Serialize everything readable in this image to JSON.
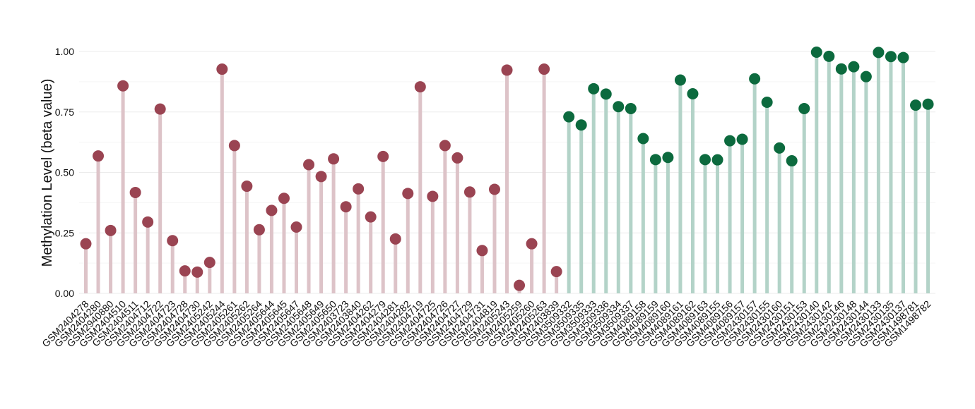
{
  "chart_data": {
    "type": "lollipop",
    "title": "",
    "xlabel": "",
    "ylabel": "Methylation Level (beta value)",
    "ylim": [
      0,
      1.0
    ],
    "yticks": [
      "0.00",
      "0.25",
      "0.50",
      "0.75",
      "1.00"
    ],
    "ytick_values": [
      0,
      0.25,
      0.5,
      0.75,
      1.0
    ],
    "grid": true,
    "categories": [
      "GSM2404278",
      "GSM2404280",
      "GSM2940880",
      "GSM2404510",
      "GSM2404511",
      "GSM2404712",
      "GSM2404722",
      "GSM2404723",
      "GSM2404728",
      "GSM2404730",
      "GSM2405242",
      "GSM2405244",
      "GSM2405261",
      "GSM2405262",
      "GSM2405264",
      "GSM2405644",
      "GSM2405645",
      "GSM2405647",
      "GSM2405648",
      "GSM2405649",
      "GSM2405650",
      "GSM2403723",
      "GSM2403840",
      "GSM2404262",
      "GSM2404279",
      "GSM2404281",
      "GSM2404282",
      "GSM2404719",
      "GSM2404725",
      "GSM2404726",
      "GSM2404727",
      "GSM2404729",
      "GSM2404731",
      "GSM2404819",
      "GSM2405243",
      "GSM2405259",
      "GSM2405260",
      "GSM2405263",
      "GSM2403839",
      "GSM3509332",
      "GSM3509335",
      "GSM3509333",
      "GSM3509336",
      "GSM3509334",
      "GSM3509337",
      "GSM4089158",
      "GSM4089159",
      "GSM4089160",
      "GSM4089161",
      "GSM4089162",
      "GSM4089163",
      "GSM4089155",
      "GSM4089156",
      "GSM4089157",
      "GSM2430157",
      "GSM2430155",
      "GSM2430160",
      "GSM2430151",
      "GSM2430153",
      "GSM2430140",
      "GSM2430142",
      "GSM2430146",
      "GSM2430148",
      "GSM2430144",
      "GSM2430133",
      "GSM2430135",
      "GSM2430137",
      "GSM1498781",
      "GSM1498782"
    ],
    "values": [
      0.205,
      0.568,
      0.26,
      0.858,
      0.417,
      0.295,
      0.762,
      0.218,
      0.093,
      0.088,
      0.128,
      0.927,
      0.611,
      0.443,
      0.263,
      0.343,
      0.393,
      0.274,
      0.532,
      0.483,
      0.556,
      0.358,
      0.432,
      0.316,
      0.566,
      0.225,
      0.413,
      0.854,
      0.401,
      0.611,
      0.56,
      0.419,
      0.177,
      0.43,
      0.923,
      0.033,
      0.205,
      0.927,
      0.09,
      0.73,
      0.696,
      0.846,
      0.824,
      0.772,
      0.764,
      0.64,
      0.553,
      0.562,
      0.882,
      0.825,
      0.553,
      0.552,
      0.631,
      0.637,
      0.887,
      0.79,
      0.601,
      0.548,
      0.764,
      0.997,
      0.98,
      0.928,
      0.937,
      0.896,
      0.996,
      0.979,
      0.975,
      0.778,
      0.782
    ],
    "groups": [
      "red",
      "red",
      "red",
      "red",
      "red",
      "red",
      "red",
      "red",
      "red",
      "red",
      "red",
      "red",
      "red",
      "red",
      "red",
      "red",
      "red",
      "red",
      "red",
      "red",
      "red",
      "red",
      "red",
      "red",
      "red",
      "red",
      "red",
      "red",
      "red",
      "red",
      "red",
      "red",
      "red",
      "red",
      "red",
      "red",
      "red",
      "red",
      "red",
      "green",
      "green",
      "green",
      "green",
      "green",
      "green",
      "green",
      "green",
      "green",
      "green",
      "green",
      "green",
      "green",
      "green",
      "green",
      "green",
      "green",
      "green",
      "green",
      "green",
      "green",
      "green",
      "green",
      "green",
      "green",
      "green",
      "green",
      "green",
      "green",
      "green"
    ],
    "colors": {
      "red_dot": "#9a4452",
      "red_stem": "#ddc3c8",
      "green_dot": "#0c6a3e",
      "green_stem": "#b3d3c8",
      "grid_major": "#ebebeb",
      "grid_minor": "#f5f5f5"
    }
  }
}
